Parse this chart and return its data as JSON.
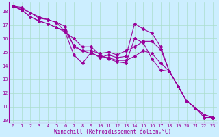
{
  "xlabel": "Windchill (Refroidissement éolien,°C)",
  "bg_color": "#cceeff",
  "line_color": "#990099",
  "grid_color": "#aaddcc",
  "xlim": [
    -0.5,
    23.5
  ],
  "ylim": [
    9.8,
    18.7
  ],
  "yticks": [
    10,
    11,
    12,
    13,
    14,
    15,
    16,
    17,
    18
  ],
  "xticks": [
    0,
    1,
    2,
    3,
    4,
    5,
    6,
    7,
    8,
    9,
    10,
    11,
    12,
    13,
    14,
    15,
    16,
    17,
    18,
    19,
    20,
    21,
    22,
    23
  ],
  "series": [
    [
      18.4,
      18.3,
      17.9,
      17.5,
      17.4,
      17.2,
      16.5,
      14.8,
      14.2,
      15.0,
      14.6,
      14.8,
      14.6,
      14.7,
      17.1,
      16.7,
      16.4,
      15.4,
      13.6,
      12.5,
      11.4,
      10.9,
      10.2,
      10.2
    ],
    [
      18.4,
      18.2,
      17.9,
      17.6,
      17.4,
      17.2,
      16.9,
      15.4,
      15.1,
      15.1,
      14.9,
      15.0,
      14.8,
      15.1,
      15.4,
      15.8,
      15.8,
      15.2,
      13.6,
      12.5,
      11.4,
      10.9,
      10.4,
      10.2
    ],
    [
      18.4,
      18.1,
      17.6,
      17.3,
      17.1,
      16.8,
      16.6,
      15.5,
      15.1,
      14.9,
      14.7,
      14.6,
      14.4,
      14.4,
      14.7,
      15.1,
      14.9,
      14.2,
      13.6,
      12.5,
      11.4,
      10.9,
      10.4,
      10.2
    ],
    [
      18.4,
      18.1,
      17.6,
      17.3,
      17.1,
      16.8,
      16.5,
      16.0,
      15.4,
      15.4,
      14.8,
      14.5,
      14.3,
      14.2,
      16.0,
      15.7,
      14.5,
      13.7,
      13.6,
      12.5,
      11.4,
      10.9,
      10.4,
      10.2
    ]
  ],
  "marker": "D",
  "markersize": 2.0,
  "linewidth": 0.8,
  "tick_fontsize": 5.0,
  "xlabel_fontsize": 5.5
}
